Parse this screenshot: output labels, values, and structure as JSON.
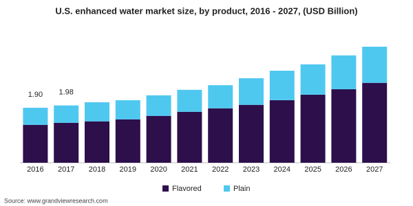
{
  "chart_data": {
    "type": "stacked_bar",
    "title": "U.S. enhanced water market size, by product, 2016 - 2027, (USD Billion)",
    "categories": [
      "2016",
      "2017",
      "2018",
      "2019",
      "2020",
      "2021",
      "2022",
      "2023",
      "2024",
      "2025",
      "2026",
      "2027"
    ],
    "series": [
      {
        "name": "Flavored",
        "color": "#2d0f4b",
        "values": [
          1.31,
          1.38,
          1.43,
          1.5,
          1.62,
          1.76,
          1.88,
          2.0,
          2.16,
          2.35,
          2.54,
          2.76
        ]
      },
      {
        "name": "Plain",
        "color": "#4fc8f0",
        "values": [
          0.59,
          0.6,
          0.66,
          0.66,
          0.71,
          0.76,
          0.8,
          0.92,
          1.02,
          1.05,
          1.17,
          1.25
        ]
      }
    ],
    "totals": [
      {
        "value": 1.9,
        "label": "1.90"
      },
      {
        "value": 1.98,
        "label": "1.98"
      }
    ],
    "ylim": [
      0,
      4.2
    ],
    "source": "Source: www.grandviewresearch.com"
  }
}
